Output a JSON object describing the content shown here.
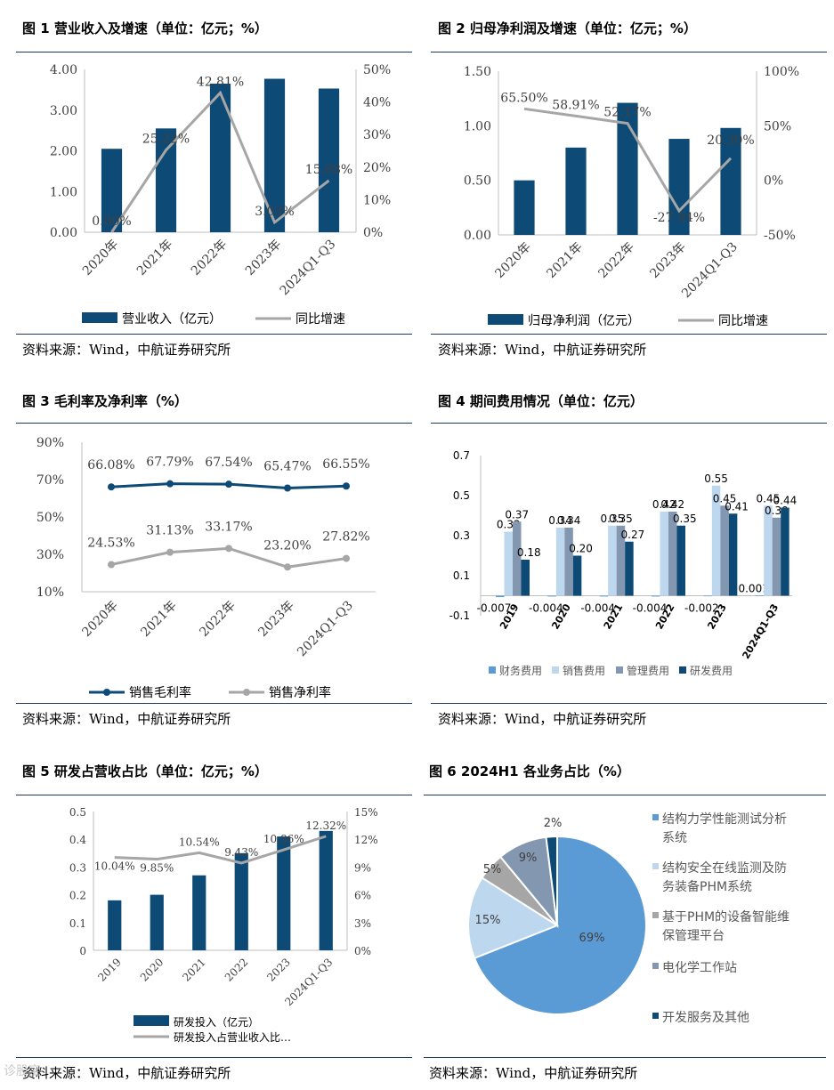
{
  "source_text": "资料来源：Wind，中航证券研究所",
  "watermark": "诊股宝",
  "chart_data": [
    {
      "id": "fig1",
      "type": "bar",
      "title": "图 1 营业收入及增速（单位：亿元；%）",
      "categories": [
        "2020年",
        "2021年",
        "2022年",
        "2023年",
        "2024Q1-Q3"
      ],
      "series": [
        {
          "name": "营业收入（亿元）",
          "kind": "bar",
          "axis": "left",
          "values": [
            2.05,
            2.55,
            3.65,
            3.77,
            3.53
          ],
          "color": "#0e4a76"
        },
        {
          "name": "同比增速",
          "kind": "line",
          "axis": "right",
          "values": [
            0.0,
            25.22,
            42.81,
            3.03,
            15.88
          ],
          "labels": [
            "0.00%",
            "25.22%",
            "42.81%",
            "3.03%",
            "15.88%"
          ],
          "color": "#a6a6a6"
        }
      ],
      "left_ticks": [
        "4.00",
        "3.00",
        "2.00",
        "1.00",
        "0.00"
      ],
      "left_ylim": [
        0,
        4
      ],
      "right_ticks": [
        "50%",
        "40%",
        "30%",
        "20%",
        "10%",
        "0%"
      ],
      "right_ylim": [
        0,
        50
      ],
      "legend_position": "bottom"
    },
    {
      "id": "fig2",
      "type": "bar",
      "title": "图 2 归母净利润及增速（单位：亿元；%）",
      "categories": [
        "2020年",
        "2021年",
        "2022年",
        "2023年",
        "2024Q1-Q3"
      ],
      "series": [
        {
          "name": "归母净利润（亿元）",
          "kind": "bar",
          "axis": "left",
          "values": [
            0.5,
            0.8,
            1.21,
            0.88,
            0.98
          ],
          "color": "#0e4a76"
        },
        {
          "name": "同比增速",
          "kind": "line",
          "axis": "right",
          "values": [
            65.5,
            58.91,
            52.17,
            -27.94,
            20.3
          ],
          "labels": [
            "65.50%",
            "58.91%",
            "52.17%",
            "-27.94%",
            "20.30%"
          ],
          "color": "#a6a6a6"
        }
      ],
      "left_ticks": [
        "1.50",
        "1.00",
        "0.50",
        "0.00"
      ],
      "left_ylim": [
        0,
        1.5
      ],
      "right_ticks": [
        "100%",
        "50%",
        "0%",
        "-50%"
      ],
      "right_ylim": [
        -50,
        100
      ],
      "legend_position": "bottom"
    },
    {
      "id": "fig3",
      "type": "line",
      "title": "图 3 毛利率及净利率（%）",
      "categories": [
        "2020年",
        "2021年",
        "2022年",
        "2023年",
        "2024Q1-Q3"
      ],
      "series": [
        {
          "name": "销售毛利率",
          "values": [
            66.08,
            67.79,
            67.54,
            65.47,
            66.55
          ],
          "labels": [
            "66.08%",
            "67.79%",
            "67.54%",
            "65.47%",
            "66.55%"
          ],
          "color": "#0e4a76"
        },
        {
          "name": "销售净利率",
          "values": [
            24.53,
            31.13,
            33.17,
            23.2,
            27.82
          ],
          "labels": [
            "24.53%",
            "31.13%",
            "33.17%",
            "23.20%",
            "27.82%"
          ],
          "color": "#a6a6a6"
        }
      ],
      "y_ticks": [
        "90%",
        "70%",
        "50%",
        "30%",
        "10%"
      ],
      "ylim": [
        10,
        90
      ],
      "legend_position": "bottom"
    },
    {
      "id": "fig4",
      "type": "bar",
      "title": "图 4 期间费用情况（单位：亿元）",
      "categories": [
        "2019",
        "2020",
        "2021",
        "2022",
        "2023",
        "2024Q1-Q3"
      ],
      "series": [
        {
          "name": "财务费用",
          "values": [
            -0.007,
            -0.004,
            -0.004,
            -0.004,
            -0.002,
            0.001
          ],
          "labels": [
            "-0.007",
            "-0.004",
            "-0.004",
            "-0.004",
            "-0.002",
            "0.001"
          ],
          "color": "#5b9bd5"
        },
        {
          "name": "销售费用",
          "values": [
            0.32,
            0.34,
            0.35,
            0.42,
            0.55,
            0.45
          ],
          "labels": [
            "0.32",
            "0.34",
            "0.35",
            "0.42",
            "0.55",
            "0.45"
          ],
          "color": "#bdd7ee"
        },
        {
          "name": "管理费用",
          "values": [
            0.37,
            0.34,
            0.35,
            0.42,
            0.45,
            0.39
          ],
          "labels": [
            "0.37",
            "0.34",
            "0.35",
            "0.42",
            "0.45",
            "0.39"
          ],
          "color": "#8497b0"
        },
        {
          "name": "研发费用",
          "values": [
            0.18,
            0.2,
            0.27,
            0.35,
            0.41,
            0.44
          ],
          "labels": [
            "0.18",
            "0.20",
            "0.27",
            "0.35",
            "0.41",
            "0.44"
          ],
          "color": "#0e4a76"
        }
      ],
      "y_ticks": [
        "0.7",
        "0.5",
        "0.3",
        "0.1",
        "-0.1"
      ],
      "ylim": [
        -0.1,
        0.7
      ],
      "legend_position": "bottom"
    },
    {
      "id": "fig5",
      "type": "bar",
      "title": "图 5 研发占营收占比（单位：亿元；%）",
      "categories": [
        "2019",
        "2020",
        "2021",
        "2022",
        "2023",
        "2024Q1-Q3"
      ],
      "series": [
        {
          "name": "研发投入（亿元）",
          "kind": "bar",
          "axis": "left",
          "values": [
            0.18,
            0.2,
            0.27,
            0.35,
            0.41,
            0.43
          ],
          "color": "#0e4a76"
        },
        {
          "name": "研发投入占营业收入比…",
          "kind": "line",
          "axis": "right",
          "values": [
            10.04,
            9.85,
            10.54,
            9.43,
            10.86,
            12.32
          ],
          "labels": [
            "10.04%",
            "9.85%",
            "10.54%",
            "9.43%",
            "10.86%",
            "12.32%"
          ],
          "color": "#a6a6a6"
        }
      ],
      "left_ticks": [
        "0.5",
        "0.4",
        "0.3",
        "0.2",
        "0.1",
        "0"
      ],
      "left_ylim": [
        0,
        0.5
      ],
      "right_ticks": [
        "15%",
        "12%",
        "9%",
        "6%",
        "3%",
        "0%"
      ],
      "right_ylim": [
        0,
        15
      ],
      "legend_position": "bottom"
    },
    {
      "id": "fig6",
      "type": "pie",
      "title": "图 6 2024H1 各业务占比（%）",
      "slices": [
        {
          "name": "结构力学性能测试分析系统",
          "value": 69,
          "label": "69%",
          "color": "#5b9bd5"
        },
        {
          "name": "结构安全在线监测及防务装备PHM系统",
          "value": 15,
          "label": "15%",
          "color": "#bdd7ee"
        },
        {
          "name": "基于PHM的设备智能维保管理平台",
          "value": 5,
          "label": "5%",
          "color": "#a6a6a6"
        },
        {
          "name": "电化学工作站",
          "value": 9,
          "label": "9%",
          "color": "#8497b0"
        },
        {
          "name": "开发服务及其他",
          "value": 2,
          "label": "2%",
          "color": "#0e4a76"
        }
      ],
      "legend_lines": [
        [
          "结构力学性能测试分析",
          "系统"
        ],
        [
          "结构安全在线监测及防",
          "务装备PHM系统"
        ],
        [
          "基于PHM的设备智能维",
          "保管理平台"
        ],
        [
          "电化学工作站"
        ],
        [
          "开发服务及其他"
        ]
      ],
      "legend_position": "right"
    }
  ]
}
